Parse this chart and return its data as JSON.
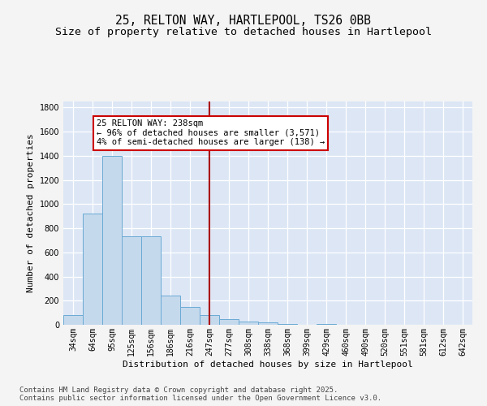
{
  "title_line1": "25, RELTON WAY, HARTLEPOOL, TS26 0BB",
  "title_line2": "Size of property relative to detached houses in Hartlepool",
  "xlabel": "Distribution of detached houses by size in Hartlepool",
  "ylabel": "Number of detached properties",
  "bar_values": [
    80,
    920,
    1400,
    730,
    730,
    245,
    145,
    80,
    45,
    30,
    20,
    10,
    0,
    10,
    0,
    0,
    0,
    0,
    0,
    0,
    0
  ],
  "bin_labels": [
    "34sqm",
    "64sqm",
    "95sqm",
    "125sqm",
    "156sqm",
    "186sqm",
    "216sqm",
    "247sqm",
    "277sqm",
    "308sqm",
    "338sqm",
    "368sqm",
    "399sqm",
    "429sqm",
    "460sqm",
    "490sqm",
    "520sqm",
    "551sqm",
    "581sqm",
    "612sqm",
    "642sqm"
  ],
  "bar_color": "#c5d9ed",
  "bar_edge_color": "#6aaad4",
  "bg_color": "#dce6f5",
  "grid_color": "#ffffff",
  "vline_x_index": 7,
  "vline_color": "#aa0000",
  "annotation_text": "25 RELTON WAY: 238sqm\n← 96% of detached houses are smaller (3,571)\n4% of semi-detached houses are larger (138) →",
  "annotation_box_color": "#cc0000",
  "ylim": [
    0,
    1850
  ],
  "yticks": [
    0,
    200,
    400,
    600,
    800,
    1000,
    1200,
    1400,
    1600,
    1800
  ],
  "fig_bg_color": "#f4f4f4",
  "footer_text": "Contains HM Land Registry data © Crown copyright and database right 2025.\nContains public sector information licensed under the Open Government Licence v3.0.",
  "title_fontsize": 10.5,
  "subtitle_fontsize": 9.5,
  "label_fontsize": 8,
  "tick_fontsize": 7,
  "footer_fontsize": 6.5,
  "annot_fontsize": 7.5
}
